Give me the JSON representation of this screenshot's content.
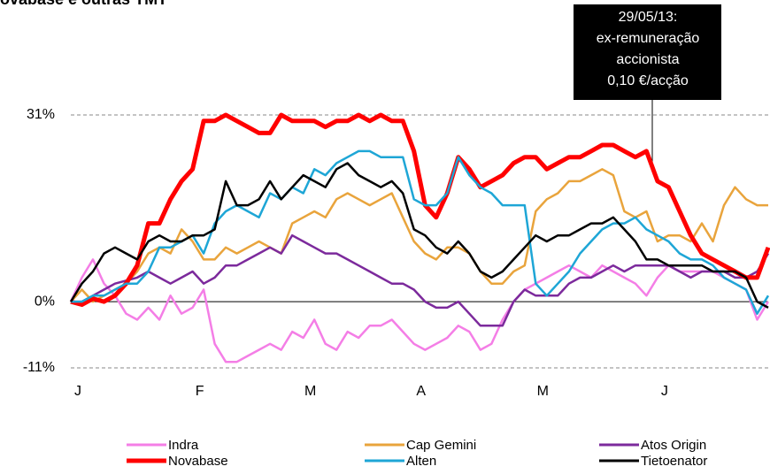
{
  "chart_data": {
    "type": "line",
    "title": "Novabase e outras TMT",
    "annotation": [
      "29/05/13:",
      "ex-remuneração",
      "accionista",
      "0,10 €/acção"
    ],
    "categories": [
      "J",
      null,
      null,
      null,
      null,
      null,
      null,
      null,
      null,
      null,
      null,
      "F",
      null,
      null,
      null,
      null,
      null,
      null,
      null,
      null,
      null,
      "M",
      null,
      null,
      null,
      null,
      null,
      null,
      null,
      null,
      null,
      "A",
      null,
      null,
      null,
      null,
      null,
      null,
      null,
      null,
      null,
      null,
      "M",
      null,
      null,
      null,
      null,
      null,
      null,
      null,
      null,
      null,
      null,
      "J",
      null,
      null,
      null,
      null,
      null,
      null,
      null,
      null,
      null,
      null
    ],
    "series": [
      {
        "name": "Indra",
        "color": "#f47ee6",
        "values": [
          0,
          4,
          7,
          3,
          1,
          -2,
          -3,
          -1,
          -3,
          1,
          -2,
          -1,
          2,
          -7,
          -10,
          -10,
          -9,
          -8,
          -7,
          -8,
          -5,
          -6,
          -3,
          -7,
          -8,
          -5,
          -6,
          -4,
          -4,
          -3,
          -5,
          -7,
          -8,
          -7,
          -6,
          -4,
          -5,
          -8,
          -7,
          -3,
          0,
          2,
          3,
          4,
          5,
          6,
          5,
          4,
          6,
          5,
          4,
          3,
          1,
          4,
          6,
          5,
          5,
          5,
          5,
          4,
          3,
          2,
          -3,
          0
        ]
      },
      {
        "name": "Cap Gemini",
        "color": "#e9a43c",
        "values": [
          0,
          2,
          0,
          1,
          2,
          3,
          5,
          8,
          9,
          8,
          12,
          10,
          7,
          7,
          9,
          8,
          9,
          10,
          9,
          8,
          13,
          14,
          15,
          14,
          17,
          18,
          17,
          16,
          17,
          18,
          14,
          10,
          8,
          7,
          9,
          9,
          8,
          5,
          3,
          3,
          5,
          6,
          15,
          17,
          18,
          20,
          20,
          21,
          22,
          21,
          15,
          14,
          15,
          10,
          11,
          11,
          10,
          13,
          10,
          16,
          19,
          17,
          16,
          16
        ]
      },
      {
        "name": "Atos Origin",
        "color": "#7c2a9c",
        "values": [
          0,
          0,
          1,
          2,
          3,
          3.5,
          4,
          5,
          4,
          3,
          4,
          5,
          3,
          4,
          6,
          6,
          7,
          8,
          9,
          8,
          11,
          10,
          9,
          8,
          8,
          7,
          6,
          5,
          4,
          3,
          3,
          2,
          0,
          -1,
          -1,
          0,
          -2,
          -4,
          -4,
          -4,
          0,
          2,
          1,
          1,
          1,
          3,
          4,
          4,
          5,
          6,
          5,
          6,
          6,
          6,
          6,
          5,
          4,
          5,
          5,
          5,
          4,
          4,
          5,
          8
        ]
      },
      {
        "name": "Novabase",
        "color": "#ff0000",
        "values": [
          0,
          -0.5,
          0.5,
          0,
          1,
          3,
          6,
          13,
          13,
          17,
          20,
          22,
          30,
          30,
          31,
          30,
          29,
          28,
          28,
          31,
          30,
          30,
          30,
          29,
          30,
          30,
          31,
          30,
          31,
          30,
          30,
          25,
          16,
          14,
          18,
          24,
          22,
          19,
          20,
          21,
          23,
          24,
          24,
          22,
          23,
          24,
          24,
          25,
          26,
          26,
          25,
          24,
          25,
          20,
          19,
          15,
          11,
          8,
          7,
          6,
          5,
          4,
          4,
          9
        ]
      },
      {
        "name": "Alten",
        "color": "#1ea6d6",
        "values": [
          0,
          0,
          1,
          1,
          2,
          3,
          3,
          5,
          9,
          9,
          10,
          11,
          8,
          13,
          15,
          16,
          15,
          14,
          18,
          17,
          19,
          18,
          22,
          21,
          23,
          24,
          25,
          25,
          24,
          24,
          24,
          17,
          16,
          16,
          18,
          24,
          21,
          19,
          18,
          16,
          16,
          16,
          3,
          1,
          3,
          5,
          8,
          10,
          12,
          13,
          13,
          14,
          12,
          11,
          10,
          8,
          7,
          7,
          6,
          4,
          3,
          2,
          -2,
          1
        ]
      },
      {
        "name": "Tietoenator",
        "color": "#000000",
        "values": [
          0,
          3,
          5,
          8,
          9,
          8,
          7,
          10,
          11,
          10,
          10,
          11,
          11,
          12,
          20,
          16,
          16,
          17,
          20,
          17,
          19,
          21,
          20,
          19,
          22,
          23,
          21,
          20,
          19,
          20,
          18,
          12,
          11,
          9,
          8,
          10,
          8,
          5,
          4,
          5,
          7,
          9,
          11,
          10,
          11,
          11,
          12,
          13,
          13,
          14,
          12,
          10,
          7,
          7,
          6,
          6,
          6,
          6,
          5,
          5,
          5,
          4,
          0,
          -1
        ]
      }
    ],
    "ylim": [
      -11,
      31
    ],
    "yticks": [
      {
        "value": -11,
        "label": "-11%"
      },
      {
        "value": 0,
        "label": "0%"
      },
      {
        "value": 31,
        "label": "31%"
      }
    ],
    "grid": true
  }
}
